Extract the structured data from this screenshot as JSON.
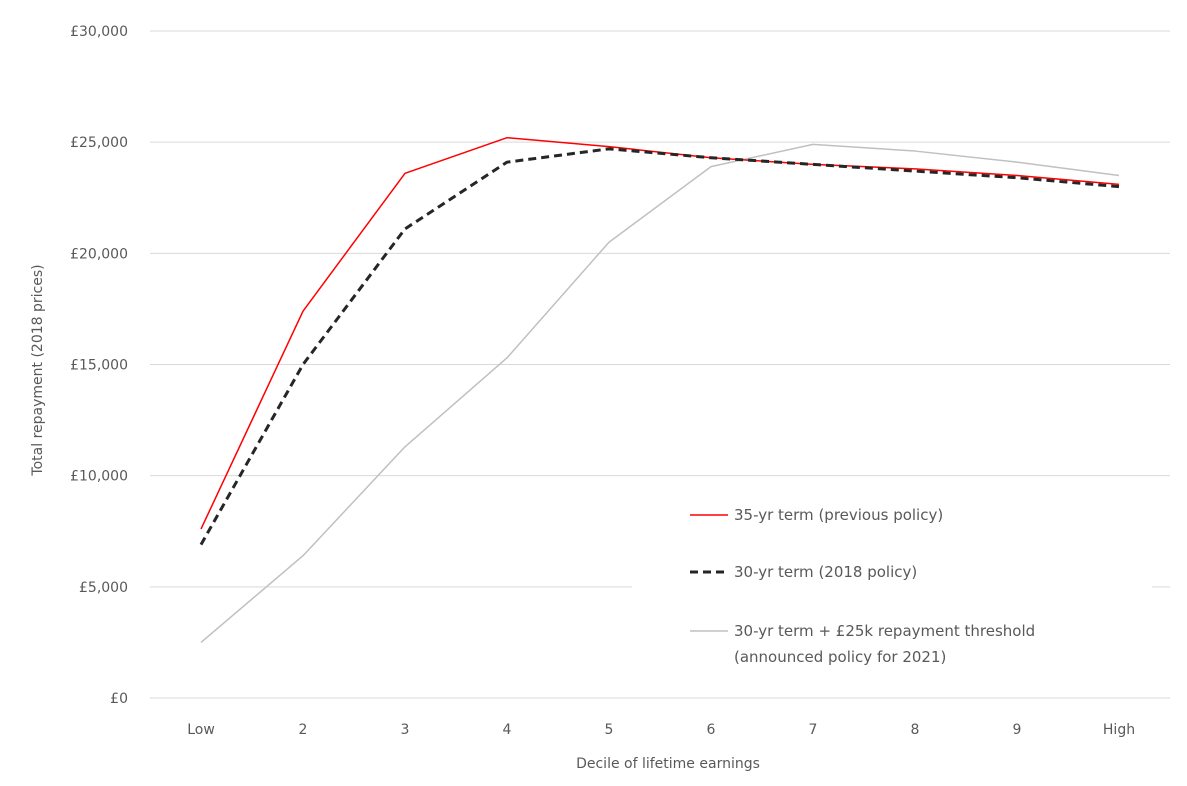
{
  "chart_data": {
    "type": "line",
    "title": "",
    "xlabel": "Decile of lifetime earnings",
    "ylabel": "Total repayment (2018 prices)",
    "categories": [
      "Low",
      "2",
      "3",
      "4",
      "5",
      "6",
      "7",
      "8",
      "9",
      "High"
    ],
    "ylim": [
      0,
      30000
    ],
    "yticks": [
      0,
      5000,
      10000,
      15000,
      20000,
      25000,
      30000
    ],
    "ytick_labels": [
      "£0",
      "£5,000",
      "£10,000",
      "£15,000",
      "£20,000",
      "£25,000",
      "£30,000"
    ],
    "grid": true,
    "legend_position": "bottom-right",
    "series": [
      {
        "name": "35-yr term (previous policy)",
        "color": "#ff0000",
        "style": "solid",
        "values": [
          7600,
          17400,
          23600,
          25200,
          24800,
          24300,
          24000,
          23800,
          23500,
          23100
        ]
      },
      {
        "name": "30-yr term (2018 policy)",
        "color": "#262626",
        "style": "dashed",
        "values": [
          6900,
          15000,
          21100,
          24100,
          24700,
          24300,
          24000,
          23700,
          23400,
          23000
        ]
      },
      {
        "name": "30-yr term + £25k repayment threshold",
        "name_line2": "(announced policy for 2021)",
        "color": "#c0c0c0",
        "style": "solid",
        "values": [
          2500,
          6400,
          11300,
          15300,
          20500,
          23900,
          24900,
          24600,
          24100,
          23500
        ]
      }
    ]
  }
}
